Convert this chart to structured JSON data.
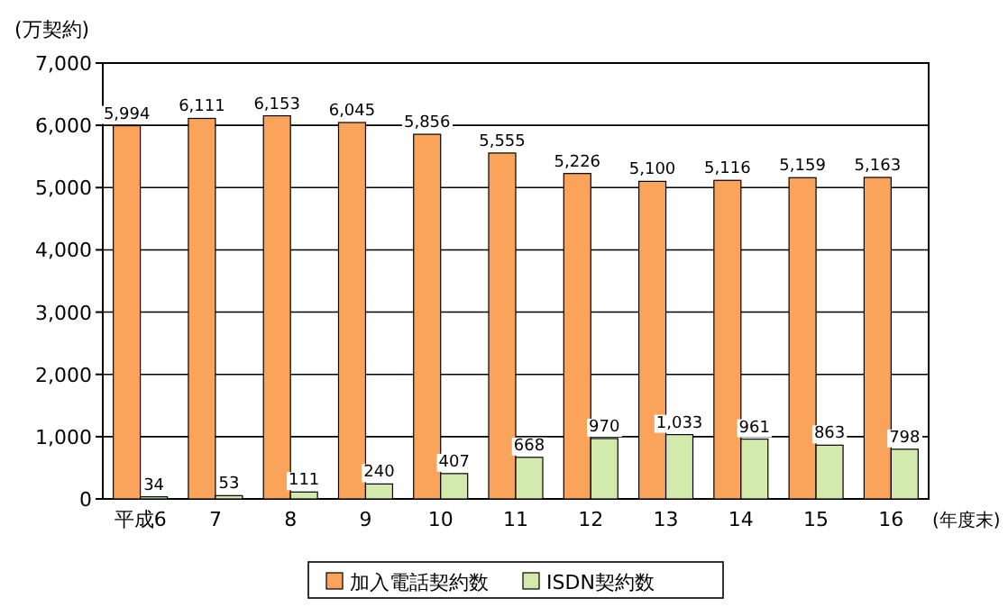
{
  "chart_data": {
    "type": "bar",
    "ylabel": "(万契約)",
    "xlabel": "(年度末)",
    "categories": [
      "平成6",
      "7",
      "8",
      "9",
      "10",
      "11",
      "12",
      "13",
      "14",
      "15",
      "16"
    ],
    "series": [
      {
        "name": "加入電話契約数",
        "color": "#f9a45a",
        "values": [
          5994,
          6111,
          6153,
          6045,
          5856,
          5555,
          5226,
          5100,
          5116,
          5159,
          5163
        ],
        "value_labels": [
          "5,994",
          "6,111",
          "6,153",
          "6,045",
          "5,856",
          "5,555",
          "5,226",
          "5,100",
          "5,116",
          "5,159",
          "5,163"
        ]
      },
      {
        "name": "ISDN契約数",
        "color": "#d2eaac",
        "values": [
          34,
          53,
          111,
          240,
          407,
          668,
          970,
          1033,
          961,
          863,
          798
        ],
        "value_labels": [
          "34",
          "53",
          "111",
          "240",
          "407",
          "668",
          "970",
          "1,033",
          "961",
          "863",
          "798"
        ]
      }
    ],
    "ylim": [
      0,
      7000
    ],
    "yticks": [
      0,
      {
        "value": 1000,
        "label": "1,000"
      },
      {
        "value": 2000,
        "label": "2,000"
      },
      {
        "value": 3000,
        "label": "3,000"
      },
      {
        "value": 4000,
        "label": "4,000"
      },
      {
        "value": 5000,
        "label": "5,000"
      },
      {
        "value": 6000,
        "label": "6,000"
      },
      {
        "value": 7000,
        "label": "7,000"
      }
    ],
    "grid": "y",
    "legend": "bottom"
  }
}
